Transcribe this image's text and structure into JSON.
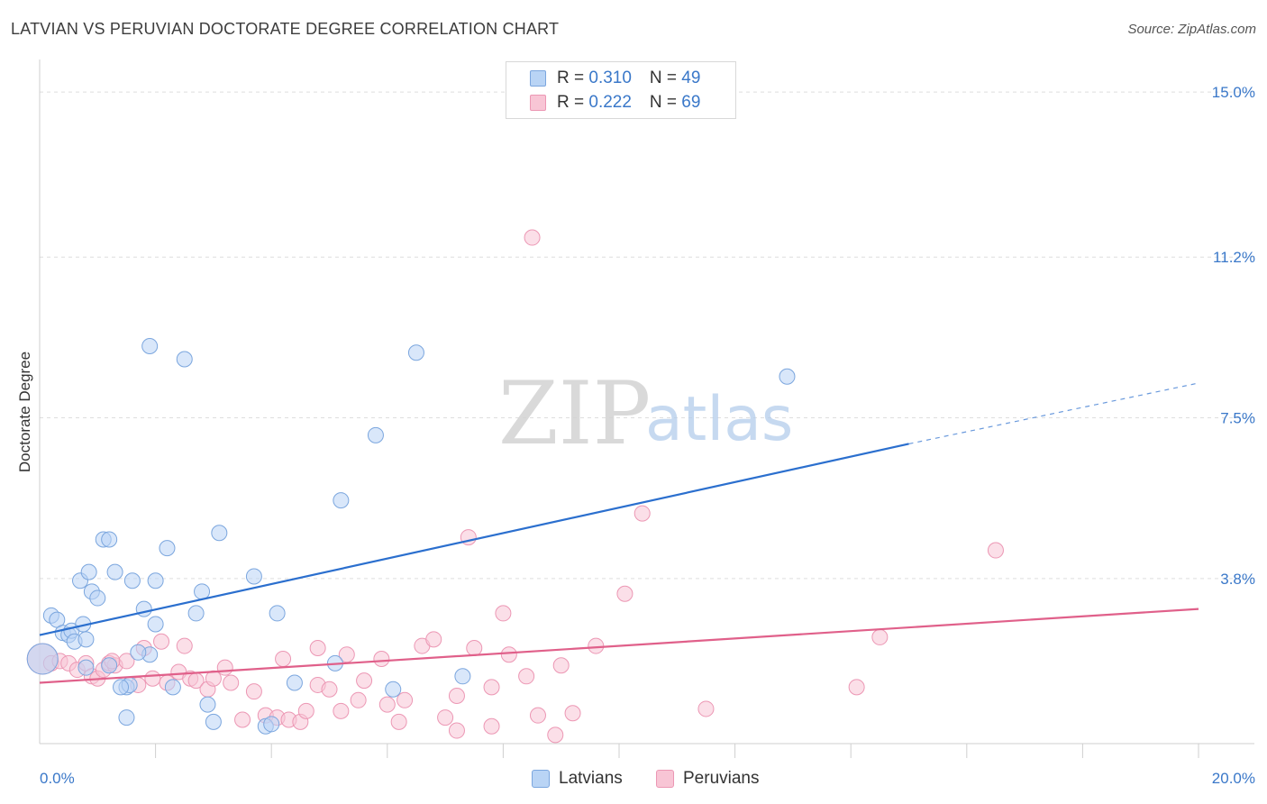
{
  "title": "LATVIAN VS PERUVIAN DOCTORATE DEGREE CORRELATION CHART",
  "source": "Source: ZipAtlas.com",
  "watermark": {
    "zip": "ZIP",
    "atlas": "atlas"
  },
  "legend": {
    "latvians": {
      "r_label": "R = ",
      "r_value": "0.310",
      "n_label": "N = ",
      "n_value": "49"
    },
    "peruvians": {
      "r_label": "R = ",
      "r_value": "0.222",
      "n_label": "N = ",
      "n_value": "69"
    }
  },
  "bottom_legend": {
    "latvians": "Latvians",
    "peruvians": "Peruvians"
  },
  "colors": {
    "latvian_fill": "#b9d4f5",
    "latvian_stroke": "#7ba6de",
    "latvian_line": "#2b6fce",
    "peruvian_fill": "#f8c5d5",
    "peruvian_stroke": "#ec97b4",
    "peruvian_line": "#e0608a",
    "grid": "#dedede",
    "axis_label": "#3a78c9"
  },
  "chart_data": {
    "type": "scatter",
    "title": "LATVIAN VS PERUVIAN DOCTORATE DEGREE CORRELATION CHART",
    "ylabel": "Doctorate Degree",
    "xlabel": "",
    "xlim": [
      0,
      20
    ],
    "ylim": [
      0,
      15.5
    ],
    "x_tick_labels": [
      {
        "value": 0,
        "label": "0.0%"
      },
      {
        "value": 20,
        "label": "20.0%"
      }
    ],
    "y_tick_labels": [
      {
        "value": 3.8,
        "label": "3.8%"
      },
      {
        "value": 7.5,
        "label": "7.5%"
      },
      {
        "value": 11.2,
        "label": "11.2%"
      },
      {
        "value": 15.0,
        "label": "15.0%"
      }
    ],
    "series": [
      {
        "name": "Latvians",
        "r": 0.31,
        "n": 49,
        "trend": {
          "x0": 0,
          "y0": 2.5,
          "x1": 15.0,
          "y1": 6.9,
          "dash_to_x": 20.0,
          "dash_to_y": 8.3
        },
        "points": [
          [
            0.05,
            1.95,
            "big"
          ],
          [
            0.2,
            2.95
          ],
          [
            0.3,
            2.85
          ],
          [
            0.4,
            2.55
          ],
          [
            0.5,
            2.5
          ],
          [
            0.55,
            2.6
          ],
          [
            0.6,
            2.35
          ],
          [
            0.75,
            2.75
          ],
          [
            0.8,
            2.4
          ],
          [
            0.7,
            3.75
          ],
          [
            0.9,
            3.5
          ],
          [
            1.0,
            3.35
          ],
          [
            0.85,
            3.95
          ],
          [
            1.1,
            4.7
          ],
          [
            1.2,
            4.7
          ],
          [
            1.3,
            3.95
          ],
          [
            1.6,
            3.75
          ],
          [
            1.8,
            3.1
          ],
          [
            2.0,
            3.75
          ],
          [
            2.2,
            4.5
          ],
          [
            2.8,
            3.5
          ],
          [
            2.7,
            3.0
          ],
          [
            3.1,
            4.85
          ],
          [
            3.7,
            3.85
          ],
          [
            4.1,
            3.0
          ],
          [
            1.9,
            2.05
          ],
          [
            2.0,
            2.75
          ],
          [
            1.5,
            1.3
          ],
          [
            1.55,
            1.35
          ],
          [
            1.4,
            1.3
          ],
          [
            1.2,
            1.8
          ],
          [
            2.3,
            1.3
          ],
          [
            2.9,
            0.9
          ],
          [
            3.0,
            0.5
          ],
          [
            3.9,
            0.4
          ],
          [
            4.0,
            0.45
          ],
          [
            4.4,
            1.4
          ],
          [
            5.1,
            1.85
          ],
          [
            6.1,
            1.25
          ],
          [
            7.3,
            1.55
          ],
          [
            1.9,
            9.15
          ],
          [
            2.5,
            8.85
          ],
          [
            6.5,
            9.0
          ],
          [
            12.9,
            8.45
          ],
          [
            5.8,
            7.1
          ],
          [
            5.2,
            5.6
          ],
          [
            1.5,
            0.6
          ],
          [
            1.7,
            2.1
          ],
          [
            0.8,
            1.75
          ]
        ]
      },
      {
        "name": "Peruvians",
        "r": 0.222,
        "n": 69,
        "trend": {
          "x0": 0,
          "y0": 1.4,
          "x1": 20.0,
          "y1": 3.1
        },
        "points": [
          [
            0.05,
            1.95,
            "big"
          ],
          [
            0.2,
            1.85
          ],
          [
            0.35,
            1.9
          ],
          [
            0.5,
            1.85
          ],
          [
            0.65,
            1.7
          ],
          [
            0.8,
            1.85
          ],
          [
            0.9,
            1.55
          ],
          [
            1.0,
            1.5
          ],
          [
            1.1,
            1.7
          ],
          [
            1.2,
            1.85
          ],
          [
            1.3,
            1.8
          ],
          [
            1.5,
            1.9
          ],
          [
            1.7,
            1.35
          ],
          [
            1.8,
            2.2
          ],
          [
            1.95,
            1.5
          ],
          [
            2.1,
            2.35
          ],
          [
            2.2,
            1.4
          ],
          [
            2.4,
            1.65
          ],
          [
            2.5,
            2.25
          ],
          [
            2.6,
            1.5
          ],
          [
            2.7,
            1.45
          ],
          [
            2.9,
            1.25
          ],
          [
            3.0,
            1.5
          ],
          [
            3.2,
            1.75
          ],
          [
            3.3,
            1.4
          ],
          [
            3.5,
            0.55
          ],
          [
            3.7,
            1.2
          ],
          [
            3.9,
            0.65
          ],
          [
            4.1,
            0.6
          ],
          [
            4.2,
            1.95
          ],
          [
            4.3,
            0.55
          ],
          [
            4.5,
            0.5
          ],
          [
            4.6,
            0.75
          ],
          [
            4.8,
            2.2
          ],
          [
            4.8,
            1.35
          ],
          [
            5.0,
            1.25
          ],
          [
            5.2,
            0.75
          ],
          [
            5.3,
            2.05
          ],
          [
            5.5,
            1.0
          ],
          [
            5.6,
            1.45
          ],
          [
            5.9,
            1.95
          ],
          [
            6.0,
            0.9
          ],
          [
            6.2,
            0.5
          ],
          [
            6.3,
            1.0
          ],
          [
            6.6,
            2.25
          ],
          [
            6.8,
            2.4
          ],
          [
            7.0,
            0.6
          ],
          [
            7.2,
            1.1
          ],
          [
            7.2,
            0.3
          ],
          [
            7.5,
            2.2
          ],
          [
            7.8,
            1.3
          ],
          [
            7.8,
            0.4
          ],
          [
            8.0,
            3.0
          ],
          [
            8.1,
            2.05
          ],
          [
            8.4,
            1.55
          ],
          [
            8.6,
            0.65
          ],
          [
            8.9,
            0.2
          ],
          [
            9.0,
            1.8
          ],
          [
            9.2,
            0.7
          ],
          [
            9.6,
            2.25
          ],
          [
            10.1,
            3.45
          ],
          [
            10.4,
            5.3
          ],
          [
            11.5,
            0.8
          ],
          [
            14.1,
            1.3
          ],
          [
            14.5,
            2.45
          ],
          [
            16.5,
            4.45
          ],
          [
            8.5,
            11.65
          ],
          [
            7.4,
            4.75
          ],
          [
            1.25,
            1.9
          ]
        ]
      }
    ]
  }
}
